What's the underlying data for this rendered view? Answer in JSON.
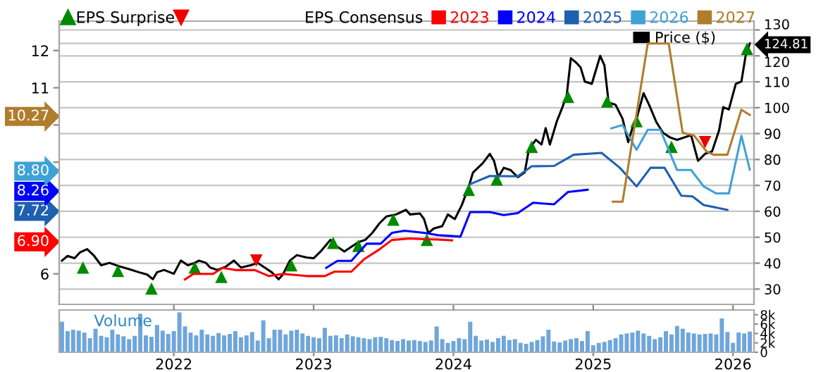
{
  "chart_data": [
    {
      "type": "line",
      "legend": "top",
      "legend_title": "EPS Consensus",
      "grid": true,
      "tick_labels": "y",
      "xlim": [
        2021.18,
        2026.15
      ],
      "xticks": [
        2022,
        2023,
        2024,
        2025,
        2026
      ],
      "ylim": [
        5.18,
        12.79
      ],
      "yticks": [
        6,
        {
          "value": 6.9,
          "label": "6.90"
        },
        {
          "value": 7.72,
          "label": "7.72"
        },
        {
          "value": 8.26,
          "label": "8.26"
        },
        {
          "value": 8.8,
          "label": "8.80"
        },
        {
          "value": 9,
          "label": null
        },
        {
          "value": 10,
          "label": null
        },
        {
          "value": 10.27,
          "label": "10.27"
        },
        11,
        12
      ],
      "y2lim": [
        24.1,
        133.4
      ],
      "y2ticks": [
        30,
        40,
        50,
        60,
        70,
        80,
        90,
        100,
        110,
        120,
        {
          "value": 124.81,
          "label": "124.81"
        },
        130
      ],
      "series": [
        {
          "name": "EPS Surprise",
          "type": "scatter",
          "marker": "triangle",
          "axis": "y2",
          "color": "#008a00",
          "x": [
            2021.35,
            2021.6,
            2021.84,
            2022.15,
            2022.34,
            2022.84,
            2023.14,
            2023.32,
            2023.57,
            2023.81,
            2024.11,
            2024.31,
            2024.56,
            2024.82,
            2025.1,
            2025.31,
            2025.56,
            2026.1
          ],
          "values": [
            38.3,
            37.0,
            30.2,
            38.3,
            34.7,
            39.2,
            47.8,
            46.7,
            56.8,
            49.0,
            68.3,
            72.3,
            84.9,
            104.2,
            102.4,
            94.8,
            84.9,
            122.7
          ]
        },
        {
          "type": "scatter",
          "marker": "triangle",
          "axis": "y2",
          "color": "#ee0000",
          "x": [
            2022.59,
            2025.8
          ],
          "values": [
            41.0,
            86.7
          ]
        },
        {
          "name": "2023",
          "type": "line",
          "axis": "y",
          "color": "#ff0000",
          "x": [
            2022.08,
            2022.14,
            2022.28,
            2022.35,
            2022.45,
            2022.58,
            2022.68,
            2022.78,
            2022.95,
            2023.08,
            2023.15,
            2023.27,
            2023.36,
            2023.46,
            2023.56,
            2023.69,
            2023.79,
            2023.89,
            2023.99
          ],
          "values": [
            5.85,
            6.0,
            6.0,
            6.16,
            6.1,
            6.1,
            5.94,
            6.0,
            5.94,
            5.94,
            6.06,
            6.06,
            6.39,
            6.63,
            6.91,
            6.95,
            6.93,
            6.92,
            6.9
          ]
        },
        {
          "name": "2024",
          "type": "line",
          "axis": "y",
          "color": "#0000ff",
          "x": [
            2023.09,
            2023.17,
            2023.27,
            2023.38,
            2023.48,
            2023.56,
            2023.65,
            2023.79,
            2023.89,
            2024.05,
            2024.12,
            2024.26,
            2024.36,
            2024.46,
            2024.57,
            2024.72,
            2024.82,
            2024.96
          ],
          "values": [
            6.16,
            6.35,
            6.35,
            6.81,
            6.81,
            7.1,
            7.16,
            7.1,
            7.04,
            7.0,
            7.66,
            7.66,
            7.58,
            7.63,
            7.91,
            7.87,
            8.2,
            8.26
          ]
        },
        {
          "name": "2025",
          "type": "line",
          "axis": "y",
          "color": "#1f60b0",
          "x": [
            2024.12,
            2024.26,
            2024.46,
            2024.56,
            2024.72,
            2024.86,
            2025.06,
            2025.19,
            2025.31,
            2025.41,
            2025.51,
            2025.63,
            2025.71,
            2025.79,
            2025.96
          ],
          "values": [
            8.41,
            8.63,
            8.62,
            8.89,
            8.9,
            9.2,
            9.25,
            8.85,
            8.35,
            8.85,
            8.85,
            8.1,
            8.08,
            7.85,
            7.72
          ]
        },
        {
          "name": "2026",
          "type": "line",
          "axis": "y",
          "color": "#3ea2d6",
          "x": [
            2025.13,
            2025.21,
            2025.31,
            2025.39,
            2025.48,
            2025.6,
            2025.7,
            2025.79,
            2025.88,
            2025.97,
            2026.06,
            2026.12
          ],
          "values": [
            9.91,
            10.0,
            9.33,
            9.87,
            9.87,
            8.79,
            8.79,
            8.35,
            8.16,
            8.16,
            9.71,
            8.8
          ]
        },
        {
          "name": "2027",
          "type": "line",
          "axis": "y",
          "color": "#b07d2b",
          "x": [
            2025.14,
            2025.21,
            2025.39,
            2025.54,
            2025.64,
            2025.72,
            2025.81,
            2025.86,
            2025.96,
            2026.06,
            2026.12
          ],
          "values": [
            7.94,
            7.94,
            12.19,
            12.19,
            9.79,
            9.72,
            9.29,
            9.2,
            9.2,
            10.41,
            10.27
          ]
        },
        {
          "name": "Price ($)",
          "type": "line",
          "axis": "y2",
          "color": "#000000",
          "x": [
            2021.2,
            2021.24,
            2021.29,
            2021.33,
            2021.38,
            2021.43,
            2021.48,
            2021.54,
            2021.61,
            2021.68,
            2021.75,
            2021.81,
            2021.85,
            2021.88,
            2021.93,
            2022.0,
            2022.05,
            2022.1,
            2022.15,
            2022.18,
            2022.23,
            2022.26,
            2022.31,
            2022.37,
            2022.43,
            2022.48,
            2022.55,
            2022.6,
            2022.65,
            2022.7,
            2022.75,
            2022.78,
            2022.83,
            2022.88,
            2022.95,
            2023.0,
            2023.05,
            2023.12,
            2023.17,
            2023.22,
            2023.27,
            2023.32,
            2023.37,
            2023.42,
            2023.47,
            2023.52,
            2023.59,
            2023.66,
            2023.69,
            2023.76,
            2023.79,
            2023.82,
            2023.86,
            2023.92,
            2023.96,
            2024.01,
            2024.06,
            2024.11,
            2024.14,
            2024.21,
            2024.26,
            2024.29,
            2024.32,
            2024.36,
            2024.41,
            2024.46,
            2024.51,
            2024.54,
            2024.59,
            2024.63,
            2024.66,
            2024.69,
            2024.74,
            2024.78,
            2024.81,
            2024.84,
            2024.88,
            2024.91,
            2024.94,
            2024.99,
            2025.05,
            2025.08,
            2025.11,
            2025.16,
            2025.21,
            2025.25,
            2025.28,
            2025.31,
            2025.36,
            2025.4,
            2025.45,
            2025.5,
            2025.55,
            2025.6,
            2025.65,
            2025.7,
            2025.75,
            2025.8,
            2025.85,
            2025.9,
            2025.93,
            2025.97,
            2026.02,
            2026.06,
            2026.09,
            2026.12
          ],
          "values": [
            41.0,
            42.8,
            41.9,
            44.2,
            45.4,
            42.8,
            39.2,
            40.1,
            38.8,
            37.7,
            36.5,
            35.6,
            33.8,
            36.5,
            37.4,
            35.9,
            41.0,
            39.2,
            40.1,
            41.0,
            40.1,
            38.3,
            37.4,
            38.6,
            41.0,
            38.3,
            39.2,
            40.1,
            38.3,
            36.5,
            33.8,
            35.6,
            41.0,
            43.1,
            42.2,
            41.9,
            44.5,
            49.0,
            46.3,
            44.5,
            46.3,
            48.1,
            49.0,
            51.7,
            55.3,
            58.0,
            58.8,
            60.6,
            58.8,
            59.2,
            57.0,
            51.6,
            53.4,
            54.3,
            58.8,
            57.0,
            62.4,
            69.6,
            75.0,
            78.6,
            82.2,
            79.5,
            73.2,
            76.8,
            75.9,
            73.2,
            75.0,
            84.0,
            87.6,
            85.8,
            92.1,
            85.8,
            94.8,
            100.2,
            104.7,
            119.1,
            117.3,
            115.5,
            110.1,
            109.2,
            120.0,
            116.4,
            102.0,
            101.1,
            95.7,
            86.7,
            92.1,
            95.7,
            105.6,
            101.1,
            94.6,
            90.3,
            88.5,
            87.6,
            88.5,
            89.4,
            79.5,
            82.2,
            83.1,
            91.2,
            100.2,
            99.3,
            109.2,
            110.1,
            120.0,
            124.81
          ]
        }
      ]
    },
    {
      "type": "bar",
      "title": "Volume",
      "color": "#6fa6da",
      "xlim": [
        2021.18,
        2026.15
      ],
      "xticks": [
        2022,
        2023,
        2024,
        2025,
        2026
      ],
      "ylim": [
        0,
        9
      ],
      "yticks": [
        0,
        {
          "value": 2,
          "label": "2k"
        },
        {
          "value": 4,
          "label": "4k"
        },
        {
          "value": 6,
          "label": "6k"
        },
        {
          "value": 8,
          "label": "8k"
        }
      ],
      "x": [
        2021.2,
        2021.24,
        2021.28,
        2021.32,
        2021.36,
        2021.4,
        2021.44,
        2021.48,
        2021.52,
        2021.56,
        2021.6,
        2021.64,
        2021.68,
        2021.72,
        2021.76,
        2021.8,
        2021.84,
        2021.88,
        2021.92,
        2021.96,
        2022.0,
        2022.04,
        2022.08,
        2022.12,
        2022.16,
        2022.2,
        2022.24,
        2022.28,
        2022.32,
        2022.36,
        2022.4,
        2022.44,
        2022.48,
        2022.52,
        2022.56,
        2022.6,
        2022.64,
        2022.68,
        2022.72,
        2022.76,
        2022.8,
        2022.84,
        2022.88,
        2022.92,
        2022.96,
        2023.0,
        2023.04,
        2023.08,
        2023.12,
        2023.16,
        2023.2,
        2023.24,
        2023.28,
        2023.32,
        2023.36,
        2023.4,
        2023.44,
        2023.48,
        2023.52,
        2023.56,
        2023.6,
        2023.64,
        2023.68,
        2023.72,
        2023.76,
        2023.8,
        2023.84,
        2023.88,
        2023.92,
        2023.96,
        2024.0,
        2024.04,
        2024.08,
        2024.12,
        2024.16,
        2024.2,
        2024.24,
        2024.28,
        2024.32,
        2024.36,
        2024.4,
        2024.44,
        2024.48,
        2024.52,
        2024.56,
        2024.6,
        2024.64,
        2024.68,
        2024.72,
        2024.76,
        2024.8,
        2024.84,
        2024.88,
        2024.92,
        2024.96,
        2025.0,
        2025.04,
        2025.08,
        2025.12,
        2025.16,
        2025.2,
        2025.24,
        2025.28,
        2025.32,
        2025.36,
        2025.4,
        2025.44,
        2025.48,
        2025.52,
        2025.56,
        2025.6,
        2025.64,
        2025.68,
        2025.72,
        2025.76,
        2025.8,
        2025.84,
        2025.88,
        2025.92,
        2025.96,
        2026.0,
        2026.04,
        2026.08,
        2026.12
      ],
      "values": [
        6.5,
        4.5,
        4.8,
        4.6,
        4.2,
        3.0,
        5.0,
        3.5,
        3.2,
        4.8,
        3.8,
        3.4,
        2.8,
        3.5,
        8.2,
        3.6,
        3.3,
        5.8,
        4.6,
        3.9,
        4.5,
        8.5,
        5.5,
        4.2,
        3.6,
        4.8,
        3.8,
        3.5,
        4.1,
        3.6,
        3.9,
        4.5,
        3.2,
        3.6,
        4.3,
        2.5,
        6.8,
        3.0,
        4.8,
        4.8,
        3.8,
        4.6,
        4.8,
        4.0,
        3.5,
        3.2,
        3.0,
        5.2,
        3.5,
        3.6,
        3.0,
        3.8,
        3.4,
        3.2,
        3.0,
        2.8,
        3.2,
        3.3,
        3.0,
        2.6,
        2.4,
        2.8,
        2.5,
        2.6,
        2.4,
        2.2,
        2.5,
        5.5,
        2.8,
        2.0,
        2.4,
        3.0,
        2.8,
        6.5,
        3.5,
        2.5,
        2.7,
        2.2,
        3.0,
        3.5,
        2.6,
        2.8,
        2.0,
        1.8,
        2.2,
        2.6,
        3.4,
        4.8,
        2.3,
        2.1,
        2.5,
        2.8,
        3.0,
        2.4,
        4.5,
        1.5,
        2.0,
        2.2,
        2.6,
        3.0,
        3.8,
        4.0,
        4.2,
        4.6,
        4.0,
        3.5,
        2.8,
        3.2,
        4.5,
        3.8,
        5.6,
        5.0,
        4.2,
        4.0,
        3.8,
        3.9,
        4.0,
        3.8,
        7.2,
        4.3,
        2.0,
        4.2,
        4.0,
        4.4
      ]
    }
  ]
}
